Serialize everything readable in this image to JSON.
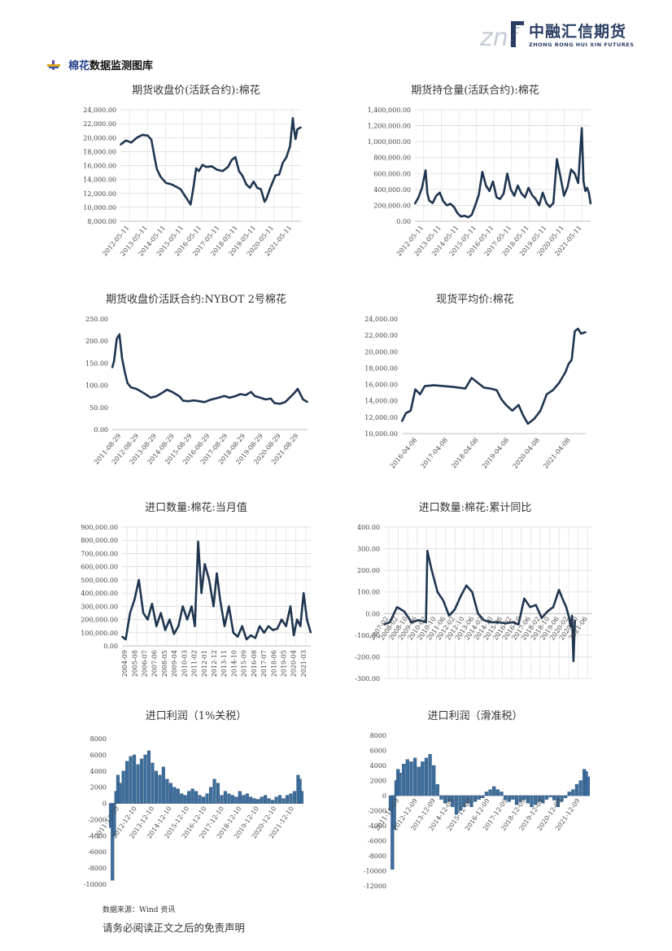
{
  "header": {
    "logo_mark": "znf",
    "logo_cn": "中融汇信期货",
    "logo_en": "ZHONG RONG HUI XIN FUTURES",
    "brand_color": "#2a3d63"
  },
  "section": {
    "title_hl": "棉花",
    "title_rest": "数据监测图库"
  },
  "footer": {
    "source": "数据来源：Wind 资讯",
    "disclaimer": "请务必阅读正文之后的免责声明"
  },
  "chart_data": [
    {
      "type": "line",
      "title": "期货收盘价(活跃合约):棉花",
      "ylim": [
        8000,
        24000
      ],
      "yticks": [
        8000,
        10000,
        12000,
        14000,
        16000,
        18000,
        20000,
        22000,
        24000
      ],
      "ytick_labels": [
        "8,000.00",
        "10,000.00",
        "12,000.00",
        "14,000.00",
        "16,000.00",
        "18,000.00",
        "20,000.00",
        "22,000.00",
        "24,000.00"
      ],
      "grid": true,
      "x_labels": [
        "2012-05-11",
        "2013-05-11",
        "2014-05-11",
        "2015-05-11",
        "2016-05-11",
        "2017-05-11",
        "2018-05-11",
        "2019-05-11",
        "2020-05-11",
        "2021-05-11"
      ],
      "x_start": 2012.3,
      "x_end": 2022.2,
      "x": [
        2012.3,
        2012.6,
        2012.9,
        2013.2,
        2013.5,
        2013.8,
        2014.0,
        2014.15,
        2014.3,
        2014.5,
        2014.8,
        2015.1,
        2015.4,
        2015.6,
        2015.8,
        2016.0,
        2016.15,
        2016.3,
        2016.45,
        2016.6,
        2016.8,
        2017.0,
        2017.3,
        2017.6,
        2017.9,
        2018.2,
        2018.4,
        2018.6,
        2018.8,
        2019.0,
        2019.2,
        2019.4,
        2019.6,
        2019.8,
        2020.0,
        2020.2,
        2020.3,
        2020.5,
        2020.8,
        2021.0,
        2021.2,
        2021.4,
        2021.6,
        2021.75,
        2021.8,
        2021.9,
        2022.0,
        2022.2
      ],
      "y": [
        19000,
        19600,
        19300,
        20000,
        20400,
        20300,
        19700,
        17500,
        15500,
        14400,
        13500,
        13300,
        12900,
        12600,
        11800,
        11000,
        10400,
        12800,
        15600,
        15200,
        16100,
        15800,
        15900,
        15400,
        15200,
        15800,
        16800,
        17200,
        15200,
        14500,
        13300,
        12800,
        13700,
        12800,
        12600,
        10800,
        11200,
        12700,
        14600,
        14700,
        16400,
        17200,
        18800,
        22800,
        21500,
        19800,
        21200,
        21500
      ]
    },
    {
      "type": "line",
      "title": "期货持仓量(活跃合约):棉花",
      "ylim": [
        0,
        1400000
      ],
      "yticks": [
        0,
        200000,
        400000,
        600000,
        800000,
        1000000,
        1200000,
        1400000
      ],
      "ytick_labels": [
        "0.00",
        "200,000.00",
        "400,000.00",
        "600,000.00",
        "800,000.00",
        "1,000,000.00",
        "1,200,000.00",
        "1,400,000.00"
      ],
      "grid": true,
      "x_labels": [
        "2012-05-11",
        "2013-05-11",
        "2014-05-11",
        "2015-05-11",
        "2016-05-11",
        "2017-05-11",
        "2018-05-11",
        "2019-05-11",
        "2020-05-11",
        "2021-05-11"
      ],
      "x_start": 2012.3,
      "x_end": 2022.2,
      "x": [
        2012.3,
        2012.5,
        2012.7,
        2012.9,
        2013.0,
        2013.1,
        2013.3,
        2013.5,
        2013.7,
        2013.9,
        2014.1,
        2014.3,
        2014.5,
        2014.7,
        2014.9,
        2015.1,
        2015.3,
        2015.5,
        2015.7,
        2015.9,
        2016.1,
        2016.3,
        2016.5,
        2016.7,
        2016.9,
        2017.1,
        2017.3,
        2017.5,
        2017.7,
        2017.9,
        2018.1,
        2018.3,
        2018.5,
        2018.7,
        2018.9,
        2019.1,
        2019.3,
        2019.5,
        2019.7,
        2019.9,
        2020.1,
        2020.3,
        2020.5,
        2020.7,
        2020.9,
        2021.1,
        2021.3,
        2021.5,
        2021.7,
        2021.8,
        2021.9,
        2022.0,
        2022.1,
        2022.2
      ],
      "y": [
        220000,
        300000,
        420000,
        640000,
        350000,
        260000,
        230000,
        320000,
        360000,
        250000,
        200000,
        220000,
        180000,
        100000,
        60000,
        70000,
        50000,
        80000,
        200000,
        330000,
        620000,
        450000,
        380000,
        500000,
        300000,
        280000,
        350000,
        600000,
        400000,
        320000,
        450000,
        350000,
        300000,
        420000,
        330000,
        280000,
        200000,
        360000,
        230000,
        180000,
        230000,
        780000,
        560000,
        320000,
        430000,
        650000,
        600000,
        480000,
        1170000,
        500000,
        380000,
        420000,
        360000,
        220000
      ]
    },
    {
      "type": "line",
      "title": "期货收盘价活跃合约:NYBOT 2号棉花",
      "ylim": [
        0,
        250
      ],
      "yticks": [
        0,
        50,
        100,
        150,
        200,
        250
      ],
      "ytick_labels": [
        "0.00",
        "50.00",
        "100.00",
        "150.00",
        "200.00",
        "250.00"
      ],
      "grid": false,
      "x_labels": [
        "2011-08-29",
        "2012-08-29",
        "2013-08-29",
        "2014-08-29",
        "2015-08-29",
        "2016-08-29",
        "2017-08-29",
        "2018-08-29",
        "2019-08-29",
        "2020-08-29",
        "2021-08-29"
      ],
      "x_start": 2011.15,
      "x_end": 2022.05,
      "x": [
        2011.15,
        2011.25,
        2011.4,
        2011.55,
        2011.7,
        2011.85,
        2012.0,
        2012.2,
        2012.5,
        2012.8,
        2013.0,
        2013.3,
        2013.6,
        2013.9,
        2014.2,
        2014.5,
        2014.7,
        2014.9,
        2015.1,
        2015.4,
        2015.7,
        2016.0,
        2016.3,
        2016.6,
        2016.9,
        2017.1,
        2017.4,
        2017.7,
        2018.0,
        2018.3,
        2018.6,
        2018.9,
        2019.1,
        2019.4,
        2019.7,
        2020.0,
        2020.2,
        2020.5,
        2020.8,
        2021.0,
        2021.3,
        2021.5,
        2021.8,
        2022.05
      ],
      "y": [
        140,
        155,
        205,
        215,
        160,
        130,
        105,
        95,
        92,
        85,
        80,
        72,
        75,
        82,
        90,
        85,
        80,
        75,
        65,
        64,
        66,
        64,
        62,
        67,
        70,
        72,
        76,
        72,
        75,
        80,
        78,
        85,
        76,
        72,
        68,
        70,
        60,
        58,
        62,
        70,
        82,
        92,
        68,
        62
      ]
    },
    {
      "type": "line",
      "title": "现货平均价:棉花",
      "ylim": [
        10000,
        24000
      ],
      "yticks": [
        10000,
        12000,
        14000,
        16000,
        18000,
        20000,
        22000,
        24000
      ],
      "ytick_labels": [
        "10,000.00",
        "12,000.00",
        "14,000.00",
        "16,000.00",
        "18,000.00",
        "20,000.00",
        "22,000.00",
        "24,000.00"
      ],
      "grid": false,
      "x_labels": [
        "2016-04-08",
        "2017-04-08",
        "2018-04-08",
        "2019-04-08",
        "2020-04-08",
        "2021-04-08"
      ],
      "x_start": 2016.27,
      "x_end": 2022.15,
      "x": [
        2016.27,
        2016.4,
        2016.55,
        2016.7,
        2016.85,
        2017.0,
        2017.3,
        2017.6,
        2017.9,
        2018.1,
        2018.3,
        2018.5,
        2018.7,
        2018.9,
        2019.1,
        2019.3,
        2019.45,
        2019.6,
        2019.8,
        2020.0,
        2020.15,
        2020.3,
        2020.5,
        2020.7,
        2020.9,
        2021.1,
        2021.3,
        2021.5,
        2021.6,
        2021.7,
        2021.8,
        2021.9,
        2022.0,
        2022.15
      ],
      "y": [
        11500,
        12500,
        12800,
        15400,
        14800,
        15800,
        15900,
        15800,
        15700,
        15600,
        15500,
        16800,
        16200,
        15600,
        15500,
        15300,
        14200,
        13500,
        12800,
        13500,
        12200,
        11200,
        11800,
        12800,
        14800,
        15300,
        16200,
        17500,
        18500,
        19000,
        22500,
        22800,
        22200,
        22400
      ]
    },
    {
      "type": "line",
      "title": "进口数量:棉花:当月值",
      "ylim": [
        0,
        900000
      ],
      "yticks": [
        0,
        100000,
        200000,
        300000,
        400000,
        500000,
        600000,
        700000,
        800000,
        900000
      ],
      "ytick_labels": [
        "0.00",
        "100,000.00",
        "200,000.00",
        "300,000.00",
        "400,000.00",
        "500,000.00",
        "600,000.00",
        "700,000.00",
        "800,000.00",
        "900,000.00"
      ],
      "grid": true,
      "x_labels": [
        "2004-09",
        "2005-08",
        "2006-07",
        "2007-06",
        "2008-05",
        "2009-04",
        "2010-03",
        "2011-02",
        "2012-01",
        "2012-12",
        "2013-11",
        "2014-10",
        "2015-09",
        "2016-08",
        "2017-07",
        "2018-06",
        "2019-05",
        "2020-04",
        "2021-03"
      ],
      "x_start": 2004.67,
      "x_end": 2021.85,
      "x": [
        2004.67,
        2005.0,
        2005.4,
        2005.8,
        2006.2,
        2006.6,
        2007.0,
        2007.4,
        2007.8,
        2008.2,
        2008.6,
        2009.0,
        2009.4,
        2009.8,
        2010.2,
        2010.6,
        2011.0,
        2011.3,
        2011.6,
        2011.9,
        2012.2,
        2012.6,
        2013.0,
        2013.3,
        2013.6,
        2014.0,
        2014.4,
        2014.8,
        2015.2,
        2015.6,
        2016.0,
        2016.4,
        2016.8,
        2017.2,
        2017.6,
        2018.0,
        2018.4,
        2018.8,
        2019.2,
        2019.6,
        2020.0,
        2020.3,
        2020.6,
        2020.9,
        2021.2,
        2021.5,
        2021.85
      ],
      "y": [
        70000,
        50000,
        250000,
        350000,
        500000,
        250000,
        200000,
        320000,
        150000,
        250000,
        120000,
        200000,
        90000,
        150000,
        300000,
        200000,
        300000,
        150000,
        790000,
        400000,
        620000,
        500000,
        300000,
        550000,
        350000,
        150000,
        300000,
        100000,
        70000,
        150000,
        50000,
        80000,
        60000,
        150000,
        100000,
        150000,
        120000,
        130000,
        200000,
        150000,
        300000,
        80000,
        200000,
        150000,
        400000,
        200000,
        100000
      ]
    },
    {
      "type": "line",
      "title": "进口数量:棉花:累计同比",
      "ylim": [
        -300,
        400
      ],
      "yticks": [
        -300,
        -200,
        -100,
        0,
        100,
        200,
        300,
        400
      ],
      "ytick_labels": [
        "-300.00",
        "-200.00",
        "-100.00",
        "0.00",
        "100.00",
        "200.00",
        "300.00",
        "400.00"
      ],
      "grid": true,
      "x_labels": [
        "2007-02",
        "2008-02",
        "2008-10",
        "2009-06",
        "2010-02",
        "2010-10",
        "2011-06",
        "2012-02",
        "2012-10",
        "2013-06",
        "2014-02",
        "2014-10",
        "2015-06",
        "2016-02",
        "2016-10",
        "2017-06",
        "2018-02",
        "2018-10",
        "2019-06",
        "2020-02",
        "2020-10",
        "2021-06"
      ],
      "x_start": 2007.1,
      "x_end": 2021.5,
      "x": [
        2007.1,
        2007.5,
        2008.0,
        2008.5,
        2009.0,
        2009.5,
        2010.0,
        2010.1,
        2010.4,
        2010.8,
        2011.2,
        2011.6,
        2012.0,
        2012.4,
        2012.8,
        2013.2,
        2013.6,
        2014.0,
        2014.5,
        2015.0,
        2015.5,
        2016.0,
        2016.4,
        2016.8,
        2017.2,
        2017.6,
        2018.0,
        2018.4,
        2018.8,
        2019.2,
        2019.5,
        2019.7,
        2019.9,
        2020.0,
        2020.1,
        2020.2,
        2020.3
      ],
      "y": [
        -50,
        -40,
        30,
        10,
        -40,
        -30,
        -40,
        290,
        200,
        100,
        60,
        -10,
        20,
        80,
        130,
        100,
        0,
        -30,
        -40,
        -40,
        -45,
        -40,
        -50,
        70,
        30,
        40,
        -20,
        10,
        30,
        110,
        60,
        30,
        -20,
        -60,
        -10,
        -220,
        -30
      ]
    },
    {
      "type": "bar",
      "title": "进口利润（1%关税）",
      "ylim": [
        -10000,
        8000
      ],
      "yticks": [
        -10000,
        -8000,
        -6000,
        -4000,
        -2000,
        0,
        2000,
        4000,
        6000,
        8000
      ],
      "ytick_labels": [
        "-10000",
        "-8000",
        "-6000",
        "-4000",
        "-2000",
        "0",
        "2000",
        "4000",
        "6000",
        "8000"
      ],
      "grid": false,
      "x_labels": [
        "2011-12-10",
        "2012-12-10",
        "2013-12-10",
        "2014-12-10",
        "2015-12-10",
        "2016-12-10",
        "2017-12-10",
        "2018-12-10",
        "2019-12-10",
        "2020-12-10",
        "2021-12-10"
      ],
      "x_start": 2011.5,
      "x_end": 2022.05,
      "x": [
        2011.5,
        2011.6,
        2011.7,
        2011.8,
        2011.9,
        2012.0,
        2012.2,
        2012.4,
        2012.6,
        2012.8,
        2013.0,
        2013.2,
        2013.4,
        2013.6,
        2013.8,
        2014.0,
        2014.2,
        2014.4,
        2014.6,
        2014.8,
        2015.0,
        2015.2,
        2015.4,
        2015.6,
        2015.8,
        2016.0,
        2016.2,
        2016.4,
        2016.6,
        2016.8,
        2017.0,
        2017.2,
        2017.4,
        2017.6,
        2017.8,
        2018.0,
        2018.2,
        2018.4,
        2018.6,
        2018.8,
        2019.0,
        2019.2,
        2019.4,
        2019.6,
        2019.8,
        2020.0,
        2020.2,
        2020.4,
        2020.6,
        2020.8,
        2021.0,
        2021.2,
        2021.4,
        2021.6,
        2021.8,
        2021.9,
        2022.0
      ],
      "y": [
        -3000,
        -9500,
        -4000,
        1500,
        3500,
        2500,
        4000,
        5200,
        5800,
        6000,
        4800,
        5500,
        6000,
        6500,
        5000,
        4000,
        3500,
        4500,
        3000,
        2500,
        2000,
        1800,
        1200,
        1000,
        1500,
        1800,
        1500,
        1000,
        800,
        1200,
        2000,
        3000,
        2500,
        1000,
        1500,
        1200,
        1000,
        800,
        1500,
        1000,
        1200,
        800,
        600,
        500,
        800,
        1000,
        600,
        400,
        800,
        1000,
        600,
        1000,
        1200,
        1500,
        3500,
        3000,
        1500
      ]
    },
    {
      "type": "bar",
      "title": "进口利润（滑准税）",
      "ylim": [
        -12000,
        8000
      ],
      "yticks": [
        -12000,
        -10000,
        -8000,
        -6000,
        -4000,
        -2000,
        0,
        2000,
        4000,
        6000,
        8000
      ],
      "ytick_labels": [
        "-12000",
        "-10000",
        "-8000",
        "-6000",
        "-4000",
        "-2000",
        "0",
        "2000",
        "4000",
        "6000",
        "8000"
      ],
      "grid": false,
      "x_labels": [
        "2011-12-09",
        "2012-12-09",
        "2013-12-09",
        "2014-12-09",
        "2015-12-09",
        "2016-12-09",
        "2017-12-09",
        "2018-12-09",
        "2019-12-09",
        "2020-12-09",
        "2021-12-09"
      ],
      "x_start": 2011.5,
      "x_end": 2022.05,
      "x": [
        2011.5,
        2011.6,
        2011.7,
        2011.8,
        2011.9,
        2012.0,
        2012.2,
        2012.4,
        2012.6,
        2012.8,
        2013.0,
        2013.2,
        2013.4,
        2013.6,
        2013.8,
        2014.0,
        2014.2,
        2014.4,
        2014.6,
        2014.8,
        2015.0,
        2015.2,
        2015.4,
        2015.6,
        2015.8,
        2016.0,
        2016.2,
        2016.4,
        2016.6,
        2016.8,
        2017.0,
        2017.2,
        2017.4,
        2017.6,
        2017.8,
        2018.0,
        2018.2,
        2018.4,
        2018.6,
        2018.8,
        2019.0,
        2019.2,
        2019.4,
        2019.6,
        2019.8,
        2020.0,
        2020.2,
        2020.4,
        2020.6,
        2020.8,
        2021.0,
        2021.2,
        2021.4,
        2021.6,
        2021.8,
        2021.9,
        2022.0
      ],
      "y": [
        -2000,
        -9800,
        -4500,
        2000,
        3500,
        3000,
        4200,
        4800,
        4500,
        5000,
        3800,
        4500,
        5000,
        5500,
        4000,
        1500,
        -500,
        -1000,
        -800,
        -1500,
        -2500,
        -2000,
        -1500,
        -1000,
        -1500,
        -800,
        -500,
        -300,
        500,
        800,
        1200,
        800,
        500,
        -500,
        -800,
        -500,
        -1200,
        -800,
        -500,
        -1000,
        -1500,
        -1200,
        -800,
        -1000,
        -500,
        -200,
        -600,
        -1500,
        -800,
        -300,
        500,
        800,
        1500,
        2000,
        3500,
        3200,
        2500
      ]
    }
  ]
}
